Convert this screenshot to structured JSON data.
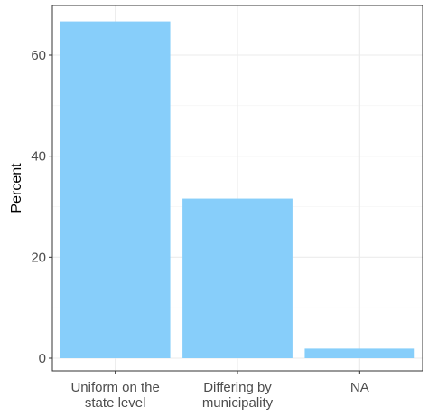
{
  "chart_data": {
    "type": "bar",
    "categories": [
      [
        "Uniform on the",
        "state level"
      ],
      [
        "Differing by",
        "municipality"
      ],
      [
        "NA"
      ]
    ],
    "values": [
      66.7,
      31.6,
      1.9
    ],
    "ylabel": "Percent",
    "xlabel": "",
    "title": "",
    "ylim": [
      0,
      70
    ],
    "yticks": [
      0,
      20,
      40,
      60
    ],
    "bar_color": "#87CEFA",
    "grid": true,
    "legend": "none"
  }
}
